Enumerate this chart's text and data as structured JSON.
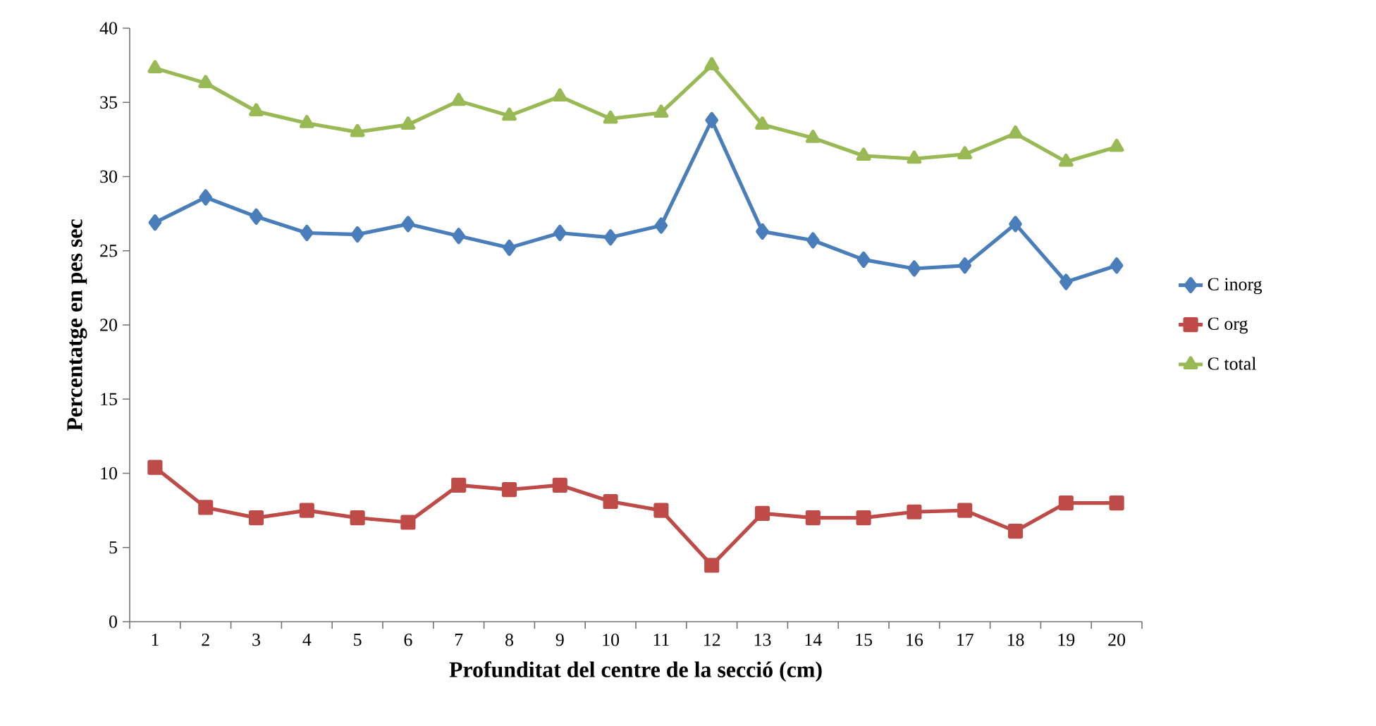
{
  "chart_data": {
    "type": "line",
    "xlabel": "Profunditat del centre de la secció (cm)",
    "ylabel": "Percentatge en pes sec",
    "categories": [
      "1",
      "2",
      "3",
      "4",
      "5",
      "6",
      "7",
      "8",
      "9",
      "10",
      "11",
      "12",
      "13",
      "14",
      "15",
      "16",
      "17",
      "18",
      "19",
      "20"
    ],
    "series": [
      {
        "name": "C inorg",
        "color": "#4a7ebb",
        "marker": "diamond",
        "values": [
          26.9,
          28.6,
          27.3,
          26.2,
          26.1,
          26.8,
          26.0,
          25.2,
          26.2,
          25.9,
          26.7,
          33.8,
          26.3,
          25.7,
          24.4,
          23.8,
          24.0,
          26.8,
          22.9,
          24.0
        ]
      },
      {
        "name": "C org",
        "color": "#be4b48",
        "marker": "square",
        "values": [
          10.4,
          7.7,
          7.0,
          7.5,
          7.0,
          6.7,
          9.2,
          8.9,
          9.2,
          8.1,
          7.5,
          3.8,
          7.3,
          7.0,
          7.0,
          7.4,
          7.5,
          6.1,
          8.0,
          8.0
        ]
      },
      {
        "name": "C total",
        "color": "#98b954",
        "marker": "triangle",
        "values": [
          37.3,
          36.3,
          34.4,
          33.6,
          33.0,
          33.5,
          35.1,
          34.1,
          35.4,
          33.9,
          34.3,
          37.5,
          33.5,
          32.6,
          31.4,
          31.2,
          31.5,
          32.9,
          31.0,
          32.0
        ]
      }
    ],
    "ylim": [
      0,
      40
    ],
    "yticks": [
      0,
      5,
      10,
      15,
      20,
      25,
      30,
      35,
      40
    ],
    "grid": false,
    "legend": "right",
    "line_style": "solid"
  }
}
